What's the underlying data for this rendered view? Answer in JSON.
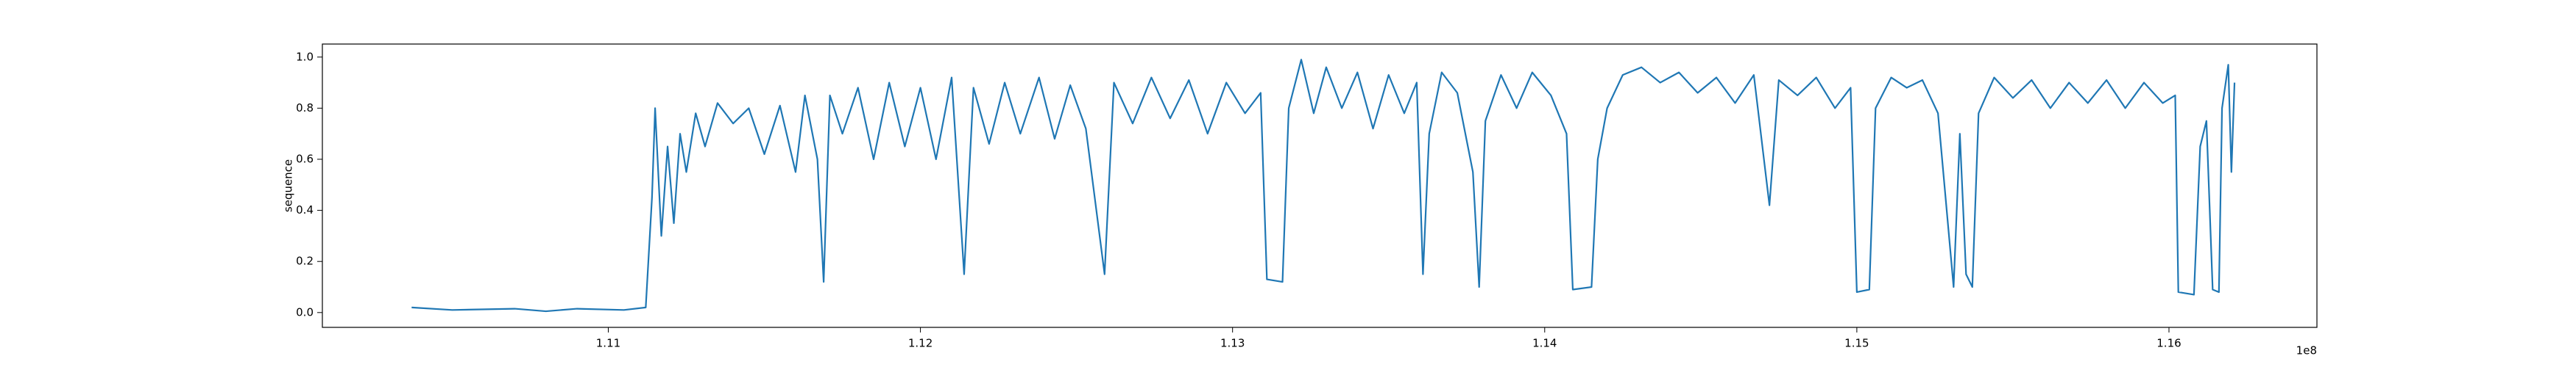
{
  "chart_data": {
    "type": "line",
    "ylabel": "sequence",
    "x_offset_label": "1e8",
    "xlim": [
      1.10084,
      1.16474
    ],
    "ylim": [
      -0.058,
      1.051
    ],
    "xticks": [
      1.11,
      1.12,
      1.13,
      1.14,
      1.15,
      1.16
    ],
    "yticks": [
      {
        "value": 0,
        "label": "0.0"
      },
      0.2,
      0.4,
      0.6,
      0.8,
      {
        "value": 1,
        "label": "1.0"
      }
    ],
    "grid": false,
    "series": [
      {
        "name": "sequence",
        "color": "#1f77b4",
        "x": [
          1.1037,
          1.105,
          1.107,
          1.108,
          1.109,
          1.1105,
          1.1112,
          1.1114,
          1.1115,
          1.1117,
          1.1119,
          1.1121,
          1.1123,
          1.1125,
          1.1128,
          1.1131,
          1.1135,
          1.114,
          1.1145,
          1.115,
          1.1155,
          1.116,
          1.1163,
          1.1167,
          1.1169,
          1.1171,
          1.1175,
          1.118,
          1.1185,
          1.119,
          1.1195,
          1.12,
          1.1205,
          1.121,
          1.1214,
          1.1217,
          1.1222,
          1.1227,
          1.1232,
          1.1238,
          1.1243,
          1.1248,
          1.1253,
          1.1259,
          1.1262,
          1.1268,
          1.1274,
          1.128,
          1.1286,
          1.1292,
          1.1298,
          1.1304,
          1.1309,
          1.1311,
          1.1316,
          1.1318,
          1.1322,
          1.1326,
          1.133,
          1.1335,
          1.134,
          1.1345,
          1.135,
          1.1355,
          1.1359,
          1.1361,
          1.1363,
          1.1367,
          1.1372,
          1.1377,
          1.1379,
          1.1381,
          1.1386,
          1.1391,
          1.1396,
          1.1402,
          1.1407,
          1.1409,
          1.1415,
          1.1417,
          1.142,
          1.1425,
          1.1431,
          1.1437,
          1.1443,
          1.1449,
          1.1455,
          1.1461,
          1.1467,
          1.1472,
          1.1475,
          1.1481,
          1.1487,
          1.1493,
          1.1498,
          1.15,
          1.1504,
          1.1506,
          1.1511,
          1.1516,
          1.1521,
          1.1526,
          1.1531,
          1.1533,
          1.1535,
          1.1537,
          1.1539,
          1.1544,
          1.155,
          1.1556,
          1.1562,
          1.1568,
          1.1574,
          1.158,
          1.1586,
          1.1592,
          1.1598,
          1.1602,
          1.1603,
          1.1608,
          1.161,
          1.1612,
          1.1614,
          1.1616,
          1.1617,
          1.1619,
          1.162,
          1.1621
        ],
        "values": [
          0.02,
          0.01,
          0.015,
          0.005,
          0.015,
          0.01,
          0.02,
          0.45,
          0.8,
          0.3,
          0.65,
          0.35,
          0.7,
          0.55,
          0.78,
          0.65,
          0.82,
          0.74,
          0.8,
          0.62,
          0.81,
          0.55,
          0.85,
          0.6,
          0.12,
          0.85,
          0.7,
          0.88,
          0.6,
          0.9,
          0.65,
          0.88,
          0.6,
          0.92,
          0.15,
          0.88,
          0.66,
          0.9,
          0.7,
          0.92,
          0.68,
          0.89,
          0.72,
          0.15,
          0.9,
          0.74,
          0.92,
          0.76,
          0.91,
          0.7,
          0.9,
          0.78,
          0.86,
          0.13,
          0.12,
          0.8,
          0.99,
          0.78,
          0.96,
          0.8,
          0.94,
          0.72,
          0.93,
          0.78,
          0.9,
          0.15,
          0.7,
          0.94,
          0.86,
          0.55,
          0.1,
          0.75,
          0.93,
          0.8,
          0.94,
          0.85,
          0.7,
          0.09,
          0.1,
          0.6,
          0.8,
          0.93,
          0.96,
          0.9,
          0.94,
          0.86,
          0.92,
          0.82,
          0.93,
          0.42,
          0.91,
          0.85,
          0.92,
          0.8,
          0.88,
          0.08,
          0.09,
          0.8,
          0.92,
          0.88,
          0.91,
          0.78,
          0.1,
          0.7,
          0.15,
          0.1,
          0.78,
          0.92,
          0.84,
          0.91,
          0.8,
          0.9,
          0.82,
          0.91,
          0.8,
          0.9,
          0.82,
          0.85,
          0.08,
          0.07,
          0.65,
          0.75,
          0.09,
          0.08,
          0.8,
          0.97,
          0.55,
          0.9
        ]
      }
    ]
  }
}
